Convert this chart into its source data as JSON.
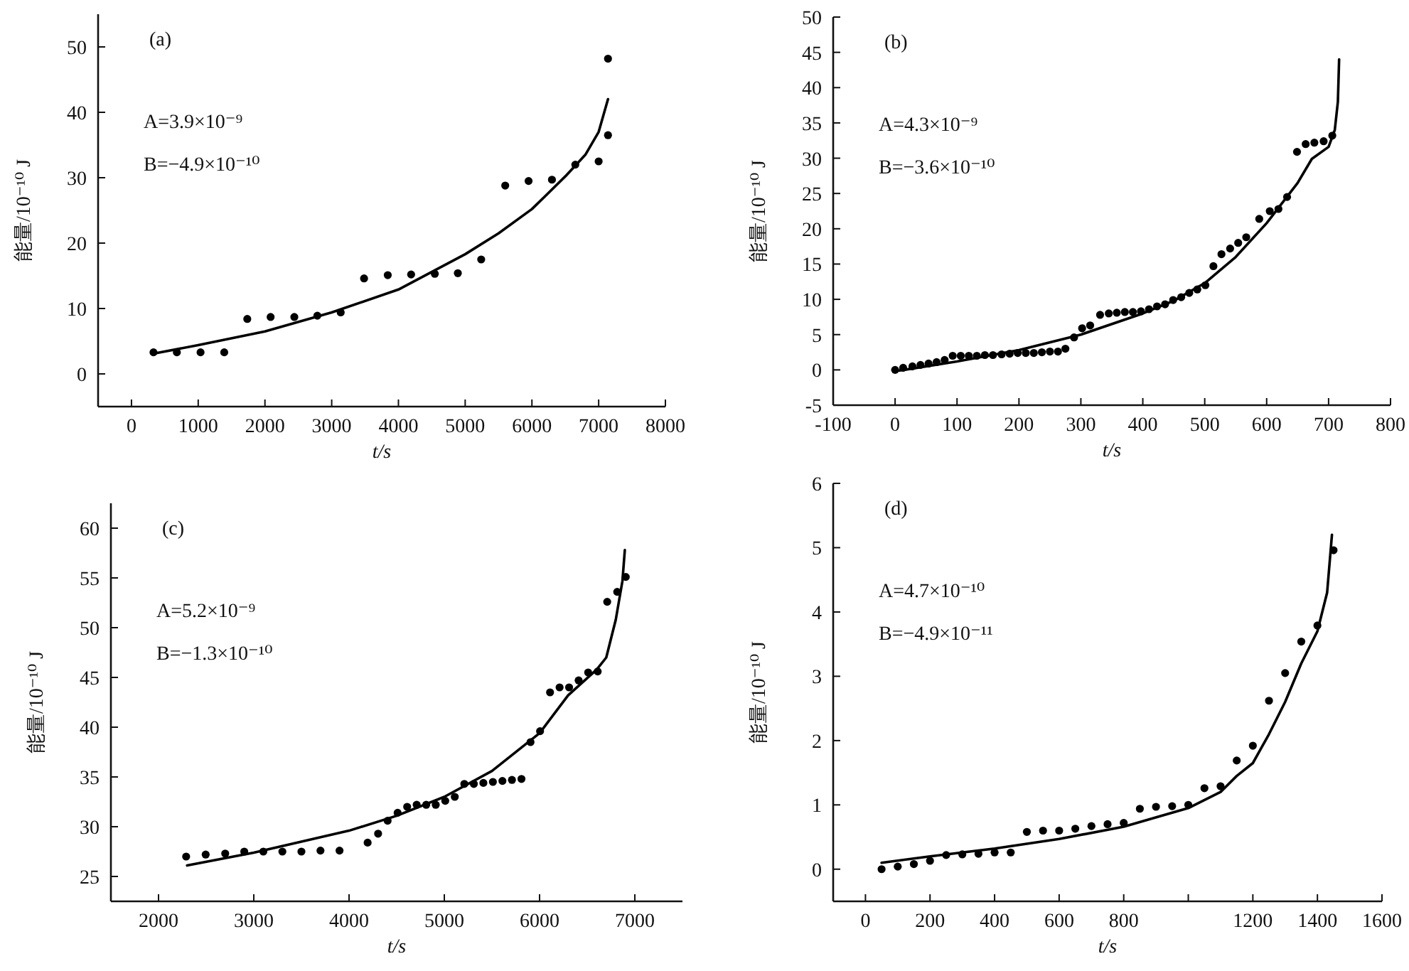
{
  "chart_data": [
    {
      "type": "scatter",
      "xlabel": "t/s",
      "ylabel": "能量/10⁻¹⁰ J",
      "annotations": [
        "(a)",
        "A=3.9×10⁻⁹",
        "B=−4.9×10⁻¹⁰"
      ],
      "xlim": [
        -500,
        8000
      ],
      "ylim": [
        -5,
        55
      ],
      "xticks": [
        0,
        1000,
        2000,
        3000,
        4000,
        5000,
        6000,
        7000,
        8000
      ],
      "yticks": [
        0,
        10,
        20,
        30,
        40,
        50
      ],
      "series": [
        {
          "type": "scatter",
          "marker": "circle",
          "color": "#000000",
          "x": [
            330,
            680,
            1035,
            1390,
            1735,
            2085,
            2440,
            2785,
            3135,
            3485,
            3840,
            4190,
            4545,
            4890,
            5240,
            5600,
            5950,
            6300,
            6650,
            7000,
            7140,
            7140
          ],
          "values": [
            3.3,
            3.3,
            3.3,
            3.3,
            8.4,
            8.7,
            8.7,
            8.9,
            9.4,
            14.6,
            15.1,
            15.2,
            15.3,
            15.4,
            17.5,
            28.8,
            29.5,
            29.7,
            32.0,
            32.5,
            36.5,
            48.2
          ]
        },
        {
          "type": "line",
          "color": "#000000",
          "x": [
            330,
            1000,
            2000,
            3000,
            4000,
            5000,
            5500,
            6000,
            6500,
            6800,
            7000,
            7140
          ],
          "values": [
            3.1,
            4.4,
            6.5,
            9.4,
            12.9,
            18.3,
            21.5,
            25.2,
            30.2,
            33.5,
            37.0,
            42.0
          ]
        }
      ]
    },
    {
      "type": "scatter",
      "xlabel": "t/s",
      "ylabel": "能量/10⁻¹⁰ J",
      "annotations": [
        "(b)",
        "A=4.3×10⁻⁹",
        "B=−3.6×10⁻¹⁰"
      ],
      "xlim": [
        -100,
        800
      ],
      "ylim": [
        -5,
        50
      ],
      "xticks": [
        -100,
        0,
        100,
        200,
        300,
        400,
        500,
        600,
        700,
        800
      ],
      "yticks": [
        -5,
        0,
        5,
        10,
        15,
        20,
        25,
        30,
        35,
        40,
        45,
        50
      ],
      "series": [
        {
          "type": "scatter",
          "marker": "circle",
          "color": "#000000",
          "x": [
            0,
            13,
            28,
            41,
            54,
            67,
            80,
            93,
            106,
            119,
            132,
            145,
            158,
            172,
            185,
            198,
            211,
            224,
            237,
            250,
            263,
            275,
            289,
            302,
            315,
            331,
            345,
            358,
            371,
            384,
            397,
            410,
            423,
            436,
            449,
            462,
            475,
            488,
            501,
            514,
            527,
            541,
            554,
            567,
            588,
            605,
            619,
            633,
            649,
            663,
            677,
            692,
            706
          ],
          "values": [
            0,
            0.3,
            0.5,
            0.7,
            0.9,
            1.1,
            1.4,
            2.0,
            2.0,
            2.0,
            2.0,
            2.1,
            2.1,
            2.2,
            2.3,
            2.4,
            2.4,
            2.4,
            2.5,
            2.6,
            2.6,
            3.0,
            4.6,
            5.9,
            6.3,
            7.8,
            8.0,
            8.1,
            8.2,
            8.2,
            8.3,
            8.6,
            9.0,
            9.3,
            9.9,
            10.3,
            10.9,
            11.4,
            12.0,
            14.7,
            16.4,
            17.2,
            18.0,
            18.8,
            21.4,
            22.5,
            22.8,
            24.5,
            30.9,
            32.0,
            32.2,
            32.4,
            33.2
          ]
        },
        {
          "type": "line",
          "color": "#000000",
          "x": [
            0,
            100,
            200,
            300,
            400,
            450,
            500,
            550,
            600,
            650,
            673,
            700,
            710,
            715,
            717
          ],
          "values": [
            -0.2,
            1.2,
            2.8,
            5.0,
            8.0,
            9.8,
            12.3,
            16.0,
            20.8,
            26.5,
            29.9,
            31.6,
            34.0,
            38.0,
            44.0
          ]
        }
      ]
    },
    {
      "type": "scatter",
      "xlabel": "t/s",
      "ylabel": "能量/10⁻¹⁰ J",
      "annotations": [
        "(c)",
        "A=5.2×10⁻⁹",
        "B=−1.3×10⁻¹⁰"
      ],
      "xlim": [
        1500,
        7500
      ],
      "ylim": [
        22.5,
        62.5
      ],
      "xticks": [
        2000,
        3000,
        4000,
        5000,
        6000,
        7000
      ],
      "yticks": [
        25,
        30,
        35,
        40,
        45,
        50,
        55,
        60
      ],
      "series": [
        {
          "type": "scatter",
          "marker": "circle",
          "color": "#000000",
          "x": [
            2290,
            2495,
            2700,
            2900,
            3100,
            3300,
            3500,
            3700,
            3900,
            4195,
            4305,
            4405,
            4510,
            4610,
            4710,
            4810,
            4910,
            5010,
            5110,
            5210,
            5310,
            5410,
            5510,
            5610,
            5710,
            5810,
            5905,
            6005,
            6110,
            6210,
            6310,
            6410,
            6510,
            6610,
            6710,
            6815,
            6905
          ],
          "values": [
            27.0,
            27.2,
            27.3,
            27.5,
            27.5,
            27.5,
            27.5,
            27.6,
            27.6,
            28.4,
            29.3,
            30.6,
            31.4,
            32.0,
            32.2,
            32.2,
            32.2,
            32.6,
            33.0,
            34.3,
            34.3,
            34.4,
            34.5,
            34.6,
            34.7,
            34.8,
            38.5,
            39.6,
            43.5,
            44.0,
            44.0,
            44.7,
            45.5,
            45.6,
            52.6,
            53.6,
            55.1
          ]
        },
        {
          "type": "line",
          "color": "#000000",
          "x": [
            2300,
            3000,
            4000,
            4500,
            5000,
            5500,
            6000,
            6300,
            6600,
            6700,
            6800,
            6870,
            6895
          ],
          "values": [
            26.1,
            27.4,
            29.6,
            31.1,
            33.0,
            35.6,
            39.4,
            43.2,
            45.8,
            47.0,
            50.8,
            54.7,
            57.8
          ]
        }
      ]
    },
    {
      "type": "scatter",
      "xlabel": "t/s",
      "ylabel": "能量/10⁻¹⁰ J",
      "annotations": [
        "(d)",
        "A=4.7×10⁻¹⁰",
        "B=−4.9×10⁻¹¹"
      ],
      "xlim": [
        -100,
        1600
      ],
      "ylim": [
        -0.5,
        6
      ],
      "xticks": [
        0,
        200,
        400,
        600,
        800,
        {
          "value": 1000,
          "label": null
        },
        1200,
        1400,
        1600
      ],
      "yticks": [
        0,
        1,
        2,
        3,
        4,
        5,
        6
      ],
      "series": [
        {
          "type": "scatter",
          "marker": "circle",
          "color": "#000000",
          "x": [
            50,
            100,
            150,
            200,
            250,
            300,
            350,
            400,
            450,
            500,
            550,
            600,
            650,
            700,
            750,
            800,
            850,
            900,
            950,
            1000,
            1050,
            1100,
            1150,
            1200,
            1250,
            1300,
            1350,
            1400,
            1450
          ],
          "values": [
            0.0,
            0.04,
            0.08,
            0.13,
            0.22,
            0.23,
            0.24,
            0.26,
            0.26,
            0.58,
            0.6,
            0.6,
            0.63,
            0.67,
            0.7,
            0.72,
            0.94,
            0.97,
            0.98,
            1.0,
            1.26,
            1.29,
            1.69,
            1.92,
            2.62,
            3.05,
            3.54,
            3.79,
            4.96
          ]
        },
        {
          "type": "line",
          "color": "#000000",
          "x": [
            50,
            200,
            400,
            600,
            800,
            1000,
            1100,
            1150,
            1200,
            1250,
            1300,
            1350,
            1400,
            1430,
            1445
          ],
          "values": [
            0.1,
            0.2,
            0.32,
            0.47,
            0.66,
            0.95,
            1.2,
            1.45,
            1.65,
            2.1,
            2.6,
            3.2,
            3.7,
            4.3,
            5.2
          ]
        }
      ]
    }
  ]
}
